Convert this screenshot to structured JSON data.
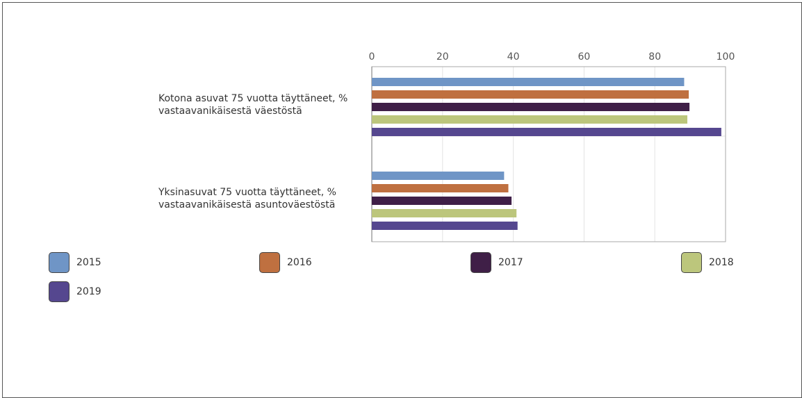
{
  "chart_data": {
    "type": "bar",
    "orientation": "horizontal",
    "categories": [
      [
        "Kotona asuvat 75 vuotta täyttäneet, %",
        "vastaavanikäisestä väestöstä"
      ],
      [
        "Yksinasuvat 75 vuotta täyttäneet, %",
        "vastaavanikäisestä asuntoväestöstä"
      ]
    ],
    "series": [
      {
        "name": "2015",
        "color": "#6f95c6",
        "values": [
          88.3,
          37.4
        ]
      },
      {
        "name": "2016",
        "color": "#bf7040",
        "values": [
          89.6,
          38.6
        ]
      },
      {
        "name": "2017",
        "color": "#3f1f47",
        "values": [
          89.8,
          39.5
        ]
      },
      {
        "name": "2018",
        "color": "#bcc67c",
        "values": [
          89.2,
          40.9
        ]
      },
      {
        "name": "2019",
        "color": "#55478f",
        "values": [
          98.8,
          41.2
        ]
      }
    ],
    "xlim": [
      0,
      100
    ],
    "xticks": [
      "0",
      "20",
      "40",
      "60",
      "80",
      "100"
    ],
    "xaxis_position": "top",
    "grid": true,
    "legend_position": "bottom"
  }
}
